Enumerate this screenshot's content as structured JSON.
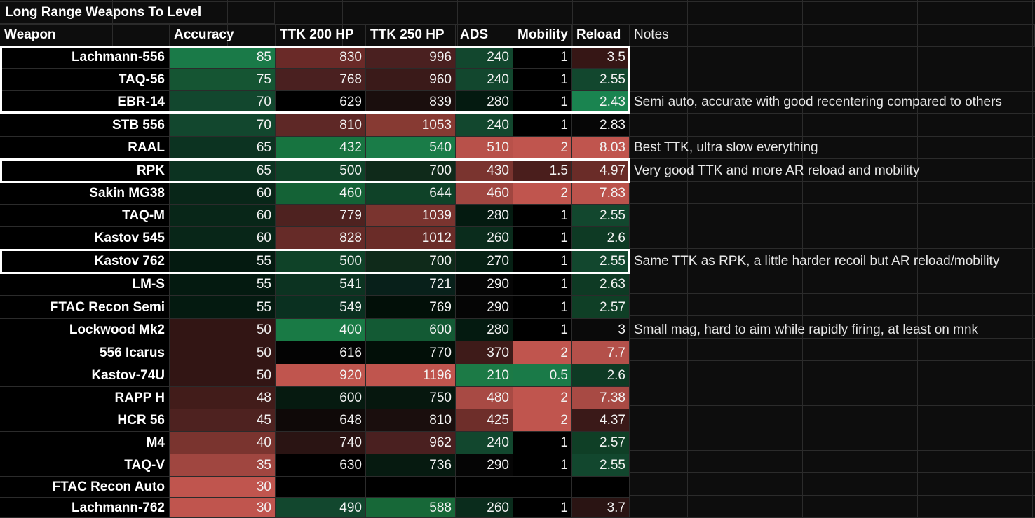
{
  "sheet_title": "Long Range Weapons To Level",
  "headers": [
    "Weapon",
    "Accuracy",
    "TTK 200 HP",
    "TTK 250 HP",
    "ADS",
    "Mobility",
    "Reload",
    "Notes"
  ],
  "rows": [
    {
      "cells": [
        "Lachmann-556",
        "85",
        "830",
        "996",
        "240",
        "1",
        "3.5"
      ],
      "colors": [
        "#000000",
        "#1a7a48",
        "#6a2a28",
        "#4a2020",
        "#12472e",
        "#000000",
        "#361615"
      ],
      "note": ""
    },
    {
      "cells": [
        "TAQ-56",
        "75",
        "768",
        "960",
        "240",
        "1",
        "2.55"
      ],
      "colors": [
        "#000000",
        "#155533",
        "#4a2020",
        "#3a1a19",
        "#12472e",
        "#000000",
        "#12472e"
      ],
      "note": ""
    },
    {
      "cells": [
        "EBR-14",
        "70",
        "629",
        "839",
        "280",
        "1",
        "2.43"
      ],
      "colors": [
        "#000000",
        "#12472e",
        "#000000",
        "#1a0e0d",
        "#041a10",
        "#000000",
        "#1a8450"
      ],
      "note": "Semi auto, accurate with good recentering compared to others"
    },
    {
      "cells": [
        "STB 556",
        "70",
        "810",
        "1053",
        "240",
        "1",
        "2.83"
      ],
      "colors": [
        "#000000",
        "#12472e",
        "#5e2826",
        "#873a33",
        "#12472e",
        "#000000",
        "#060606"
      ],
      "note": ""
    },
    {
      "cells": [
        "RAAL",
        "65",
        "432",
        "540",
        "510",
        "2",
        "8.03"
      ],
      "colors": [
        "#000000",
        "#0c3321",
        "#177440",
        "#1a7c48",
        "#b8514a",
        "#c0554e",
        "#c0554e"
      ],
      "note": "Best TTK, ultra slow everything"
    },
    {
      "cells": [
        "RPK",
        "65",
        "500",
        "700",
        "430",
        "1.5",
        "4.97"
      ],
      "colors": [
        "#000000",
        "#0c3321",
        "#0f4228",
        "#0f2a1a",
        "#7a342f",
        "#4a1e1c",
        "#6a2c28"
      ],
      "note": "Very good TTK and more AR reload and mobility"
    },
    {
      "cells": [
        "Sakin MG38",
        "60",
        "460",
        "644",
        "460",
        "2",
        "7.83"
      ],
      "colors": [
        "#000000",
        "#082618",
        "#146236",
        "#0f4228",
        "#a04640",
        "#c0554e",
        "#bb534c"
      ],
      "note": ""
    },
    {
      "cells": [
        "TAQ-M",
        "60",
        "779",
        "1039",
        "280",
        "1",
        "2.55"
      ],
      "colors": [
        "#000000",
        "#082618",
        "#4e2220",
        "#7a342f",
        "#041a10",
        "#000000",
        "#12472e"
      ],
      "note": ""
    },
    {
      "cells": [
        "Kastov 545",
        "60",
        "828",
        "1012",
        "260",
        "1",
        "2.6"
      ],
      "colors": [
        "#000000",
        "#082618",
        "#662b28",
        "#6a2c28",
        "#0a2c1c",
        "#000000",
        "#0e3a24"
      ],
      "note": ""
    },
    {
      "cells": [
        "Kastov 762",
        "55",
        "500",
        "700",
        "270",
        "1",
        "2.55"
      ],
      "colors": [
        "#000000",
        "#041a10",
        "#0f4228",
        "#0f2a1a",
        "#062014",
        "#000000",
        "#12472e"
      ],
      "note": "Same TTK as RPK, a little harder recoil but AR reload/mobility"
    },
    {
      "cells": [
        "LM-S",
        "55",
        "541",
        "721",
        "290",
        "1",
        "2.63"
      ],
      "colors": [
        "#000000",
        "#041a10",
        "#0c3321",
        "#08201a",
        "#050505",
        "#000000",
        "#0e3a24"
      ],
      "note": ""
    },
    {
      "cells": [
        "FTAC Recon Semi",
        "55",
        "549",
        "769",
        "290",
        "1",
        "2.57"
      ],
      "colors": [
        "#000000",
        "#041a10",
        "#0a3020",
        "#020f08",
        "#050505",
        "#000000",
        "#0f3f26"
      ],
      "note": ""
    },
    {
      "cells": [
        "Lockwood Mk2",
        "50",
        "400",
        "600",
        "280",
        "1",
        "3"
      ],
      "colors": [
        "#000000",
        "#321514",
        "#197a45",
        "#135a34",
        "#041a10",
        "#000000",
        "#0a0a0a"
      ],
      "note": "Small mag, hard to aim while rapidly firing, at least on mnk"
    },
    {
      "cells": [
        "556 Icarus",
        "50",
        "616",
        "770",
        "370",
        "2",
        "7.7"
      ],
      "colors": [
        "#000000",
        "#321514",
        "#030303",
        "#020f08",
        "#3e1b19",
        "#c0554e",
        "#b4504a"
      ],
      "note": ""
    },
    {
      "cells": [
        "Kastov-74U",
        "50",
        "920",
        "1196",
        "210",
        "0.5",
        "2.6"
      ],
      "colors": [
        "#000000",
        "#321514",
        "#c0554e",
        "#c0554e",
        "#1c7a46",
        "#1a7a48",
        "#0e3a24"
      ],
      "note": ""
    },
    {
      "cells": [
        "RAPP H",
        "48",
        "600",
        "750",
        "480",
        "2",
        "7.38"
      ],
      "colors": [
        "#000000",
        "#421c1a",
        "#061a10",
        "#06170e",
        "#a84a44",
        "#c0554e",
        "#a84a44"
      ],
      "note": ""
    },
    {
      "cells": [
        "HCR 56",
        "45",
        "648",
        "810",
        "425",
        "2",
        "4.37"
      ],
      "colors": [
        "#000000",
        "#4e2220",
        "#0f0908",
        "#1a0e0d",
        "#6e2e2a",
        "#c0554e",
        "#3a1918"
      ],
      "note": ""
    },
    {
      "cells": [
        "M4",
        "40",
        "740",
        "962",
        "240",
        "1",
        "2.57"
      ],
      "colors": [
        "#000000",
        "#7a342f",
        "#2a1413",
        "#4a2020",
        "#12472e",
        "#000000",
        "#0f3f26"
      ],
      "note": ""
    },
    {
      "cells": [
        "TAQ-V",
        "35",
        "630",
        "736",
        "290",
        "1",
        "2.55"
      ],
      "colors": [
        "#000000",
        "#a04640",
        "#000000",
        "#061a10",
        "#050505",
        "#000000",
        "#12472e"
      ],
      "note": ""
    },
    {
      "cells": [
        "FTAC Recon Auto",
        "30",
        "",
        "",
        "",
        "",
        ""
      ],
      "colors": [
        "#000000",
        "#c0554e",
        "#000000",
        "#000000",
        "#000000",
        "#000000",
        "#000000"
      ],
      "note": ""
    },
    {
      "cells": [
        "Lachmann-762",
        "30",
        "490",
        "588",
        "260",
        "1",
        "3.7"
      ],
      "colors": [
        "#000000",
        "#c0554e",
        "#12472e",
        "#176838",
        "#0a2c1c",
        "#000000",
        "#2a1413"
      ],
      "note": ""
    }
  ]
}
